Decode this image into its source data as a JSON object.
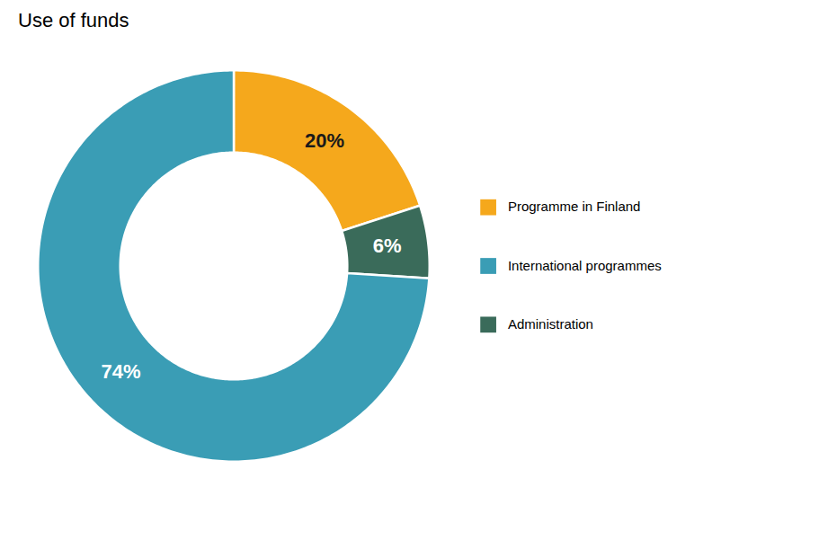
{
  "chart_data": {
    "type": "pie",
    "title": "Use of funds",
    "categories": [
      "Programme in Finland",
      "Administration",
      "International programmes"
    ],
    "values": [
      20,
      6,
      74
    ],
    "value_labels": [
      "20%",
      "6%",
      "74%"
    ],
    "colors": [
      "#f5a81c",
      "#3a6b5a",
      "#3a9db5"
    ],
    "data_labels": true,
    "legend": "right"
  }
}
